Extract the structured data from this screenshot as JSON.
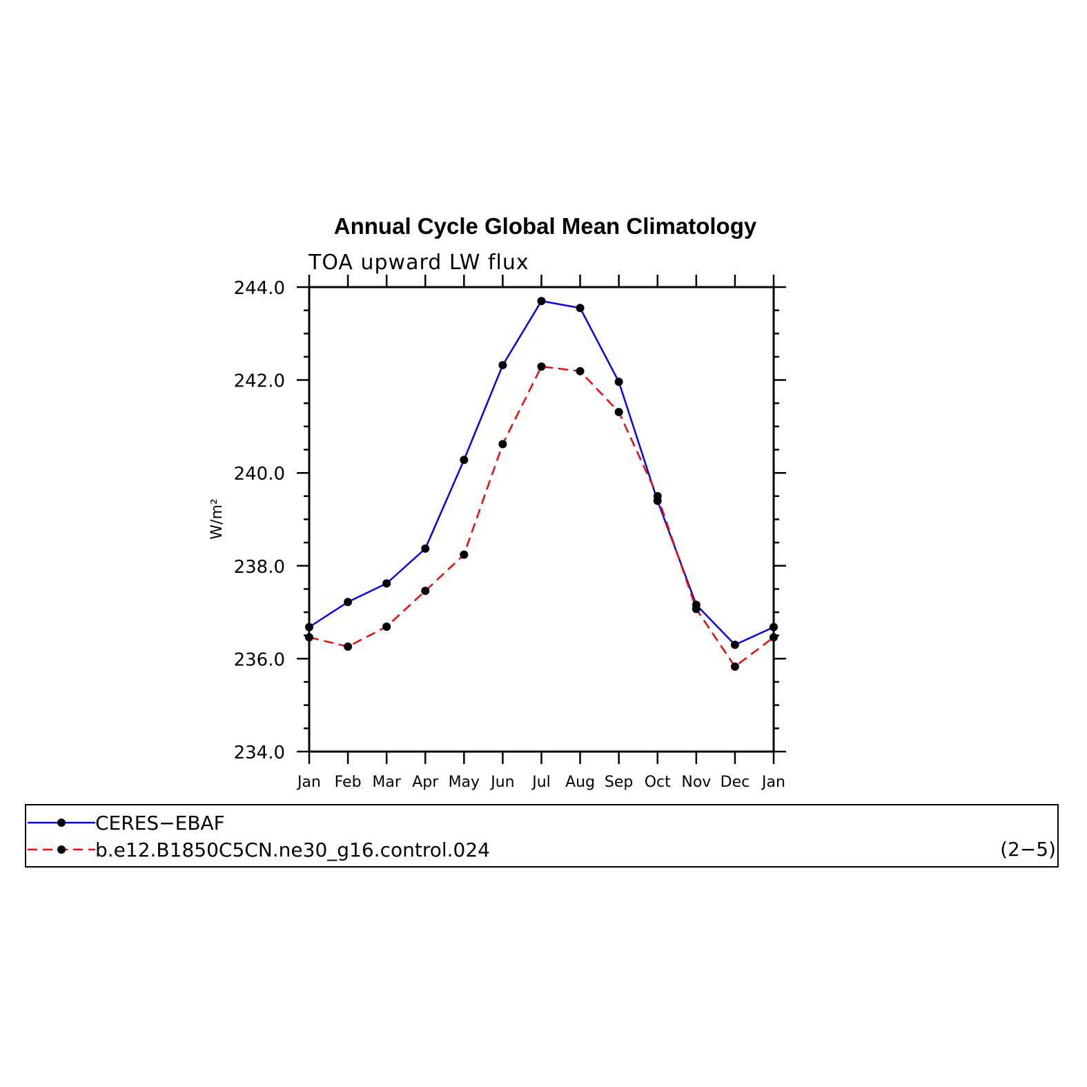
{
  "chart_data": {
    "type": "line",
    "title": "Annual Cycle Global Mean Climatology",
    "subtitle": "TOA upward LW flux",
    "ylabel": "W/m²",
    "xlabel": "",
    "ylim": [
      234.0,
      244.0
    ],
    "yticks": [
      "234.0",
      "236.0",
      "238.0",
      "240.0",
      "242.0",
      "244.0"
    ],
    "categories": [
      "Jan",
      "Feb",
      "Mar",
      "Apr",
      "May",
      "Jun",
      "Jul",
      "Aug",
      "Sep",
      "Oct",
      "Nov",
      "Dec",
      "Jan"
    ],
    "series": [
      {
        "name": "CERES−EBAF",
        "color": "#0000ff",
        "dash": "solid",
        "values": [
          236.68,
          237.22,
          237.62,
          238.37,
          240.28,
          242.32,
          243.7,
          243.55,
          241.96,
          239.4,
          237.16,
          236.3,
          236.68
        ]
      },
      {
        "name": "b.e12.B1850C5CN.ne30_g16.control.024",
        "color": "#ff0000",
        "dash": "dashed",
        "values": [
          236.46,
          236.26,
          236.69,
          237.46,
          238.24,
          240.62,
          242.29,
          242.19,
          241.31,
          239.5,
          237.07,
          235.83,
          236.46
        ]
      }
    ],
    "legend_note": "(2−5)",
    "marker_color": "#000000"
  }
}
